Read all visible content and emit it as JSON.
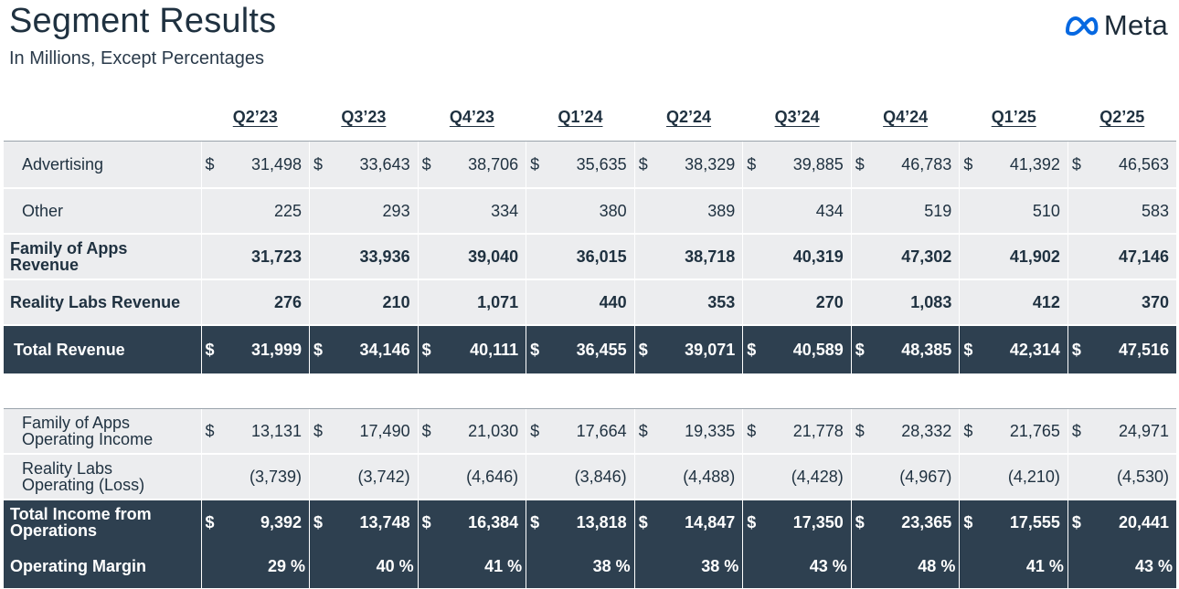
{
  "title": "Segment Results",
  "subtitle": "In Millions, Except Percentages",
  "brand": {
    "name": "Meta",
    "color": "#0668e1"
  },
  "quarters": [
    "Q2’23",
    "Q3’23",
    "Q4’23",
    "Q1’24",
    "Q2’24",
    "Q3’24",
    "Q4’24",
    "Q1’25",
    "Q2’25"
  ],
  "revenue": {
    "advertising": {
      "label": "Advertising",
      "values": [
        "31,498",
        "33,643",
        "38,706",
        "35,635",
        "38,329",
        "39,885",
        "46,783",
        "41,392",
        "46,563"
      ]
    },
    "other": {
      "label": "Other",
      "values": [
        "225",
        "293",
        "334",
        "380",
        "389",
        "434",
        "519",
        "510",
        "583"
      ]
    },
    "foa": {
      "label_line1": "Family of Apps",
      "label_line2": "Revenue",
      "values": [
        "31,723",
        "33,936",
        "39,040",
        "36,015",
        "38,718",
        "40,319",
        "47,302",
        "41,902",
        "47,146"
      ]
    },
    "rl": {
      "label": "Reality Labs Revenue",
      "values": [
        "276",
        "210",
        "1,071",
        "440",
        "353",
        "270",
        "1,083",
        "412",
        "370"
      ]
    },
    "total": {
      "label": "Total Revenue",
      "values": [
        "31,999",
        "34,146",
        "40,111",
        "36,455",
        "39,071",
        "40,589",
        "48,385",
        "42,314",
        "47,516"
      ]
    }
  },
  "income": {
    "foa": {
      "label_line1": "Family of Apps",
      "label_line2": "Operating Income",
      "values": [
        "13,131",
        "17,490",
        "21,030",
        "17,664",
        "19,335",
        "21,778",
        "28,332",
        "21,765",
        "24,971"
      ]
    },
    "rl": {
      "label_line1": "Reality Labs",
      "label_line2": "Operating (Loss)",
      "values": [
        "(3,739)",
        "(3,742)",
        "(4,646)",
        "(3,846)",
        "(4,488)",
        "(4,428)",
        "(4,967)",
        "(4,210)",
        "(4,530)"
      ]
    },
    "total": {
      "label_line1": "Total Income from",
      "label_line2": "Operations",
      "values": [
        "9,392",
        "13,748",
        "16,384",
        "13,818",
        "14,847",
        "17,350",
        "23,365",
        "17,555",
        "20,441"
      ]
    },
    "margin": {
      "label": "Operating Margin",
      "values": [
        "29 %",
        "40 %",
        "41 %",
        "38 %",
        "38 %",
        "43 %",
        "48 %",
        "41 %",
        "43 %"
      ]
    }
  },
  "currency_symbol": "$"
}
